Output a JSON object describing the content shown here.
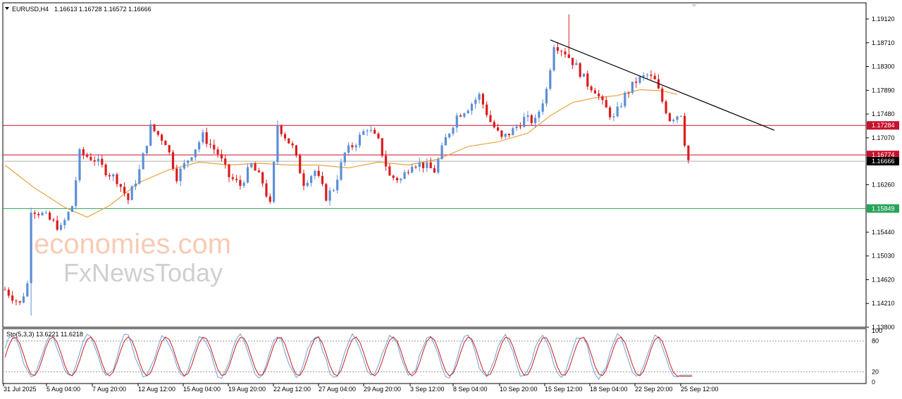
{
  "header": {
    "symbol": "EURUSD,H4",
    "ohlc": "1.16613 1.16728 1.16572 1.16666"
  },
  "indicator": {
    "label": "Sto(5,3,3) 13.6221 11.6218",
    "levels": [
      "100",
      "80",
      "20",
      "0"
    ]
  },
  "watermark": {
    "line1": "economies.com",
    "line2": "FxNewsToday"
  },
  "colors": {
    "bull": "#5b8fd6",
    "bear": "#dd1c1c",
    "ma": "#e8a33d",
    "trendline": "#000000",
    "resistance": "#c8112e",
    "support": "#27a35b",
    "current": "#000000",
    "sto_main": "#6ea0d8",
    "sto_signal": "#c81e1e"
  },
  "chart_data": {
    "type": "candlestick",
    "symbol": "EURUSD",
    "timeframe": "H4",
    "ylim": [
      1.138,
      1.194
    ],
    "y_ticks": [
      "1.19120",
      "1.18710",
      "1.18300",
      "1.17890",
      "1.17480",
      "1.17070",
      "1.16260",
      "1.15440",
      "1.15030",
      "1.14620",
      "1.14210",
      "1.13800"
    ],
    "x_ticks": [
      "31 Jul 2025",
      "5 Aug 04:00",
      "7 Aug 20:00",
      "12 Aug 12:00",
      "15 Aug 04:00",
      "19 Aug 20:00",
      "22 Aug 12:00",
      "27 Aug 04:00",
      "29 Aug 20:00",
      "3 Sep 12:00",
      "8 Sep 04:00",
      "10 Sep 20:00",
      "15 Sep 12:00",
      "18 Sep 04:00",
      "22 Sep 20:00",
      "25 Sep 12:00"
    ],
    "horizontal_lines": [
      {
        "label": "1.17284",
        "value": 1.17284,
        "kind": "resistance"
      },
      {
        "label": "1.16774",
        "value": 1.16774,
        "kind": "resistance"
      },
      {
        "label": "1.16666",
        "value": 1.16666,
        "kind": "current"
      },
      {
        "label": "1.15849",
        "value": 1.15849,
        "kind": "support"
      }
    ],
    "trendline": {
      "from": {
        "bar": 146,
        "price": 1.1876
      },
      "to": {
        "bar": 206,
        "price": 1.172
      }
    },
    "price_path": [
      [
        0,
        1.1445
      ],
      [
        4,
        1.142
      ],
      [
        6,
        1.1455
      ],
      [
        7,
        1.1585
      ],
      [
        10,
        1.1575
      ],
      [
        13,
        1.156
      ],
      [
        15,
        1.155
      ],
      [
        18,
        1.159
      ],
      [
        20,
        1.168
      ],
      [
        24,
        1.167
      ],
      [
        27,
        1.165
      ],
      [
        30,
        1.1635
      ],
      [
        33,
        1.16
      ],
      [
        36,
        1.165
      ],
      [
        39,
        1.1725
      ],
      [
        43,
        1.17
      ],
      [
        46,
        1.164
      ],
      [
        50,
        1.168
      ],
      [
        53,
        1.171
      ],
      [
        57,
        1.168
      ],
      [
        60,
        1.164
      ],
      [
        63,
        1.1625
      ],
      [
        66,
        1.166
      ],
      [
        69,
        1.163
      ],
      [
        71,
        1.159
      ],
      [
        73,
        1.173
      ],
      [
        77,
        1.169
      ],
      [
        80,
        1.163
      ],
      [
        83,
        1.165
      ],
      [
        86,
        1.1605
      ],
      [
        88,
        1.162
      ],
      [
        91,
        1.168
      ],
      [
        94,
        1.17
      ],
      [
        97,
        1.1725
      ],
      [
        100,
        1.17
      ],
      [
        103,
        1.164
      ],
      [
        106,
        1.1635
      ],
      [
        109,
        1.1665
      ],
      [
        112,
        1.166
      ],
      [
        115,
        1.165
      ],
      [
        118,
        1.1705
      ],
      [
        121,
        1.1745
      ],
      [
        124,
        1.176
      ],
      [
        127,
        1.178
      ],
      [
        130,
        1.1735
      ],
      [
        133,
        1.1705
      ],
      [
        136,
        1.172
      ],
      [
        139,
        1.174
      ],
      [
        142,
        1.1735
      ],
      [
        145,
        1.179
      ],
      [
        147,
        1.187
      ],
      [
        150,
        1.1855
      ],
      [
        153,
        1.183
      ],
      [
        156,
        1.18
      ],
      [
        158,
        1.179
      ],
      [
        160,
        1.1765
      ],
      [
        163,
        1.174
      ],
      [
        166,
        1.178
      ],
      [
        169,
        1.1805
      ],
      [
        172,
        1.1815
      ],
      [
        174,
        1.1805
      ],
      [
        176,
        1.177
      ],
      [
        178,
        1.174
      ],
      [
        181,
        1.175
      ],
      [
        182,
        1.17
      ],
      [
        183,
        1.1668
      ]
    ],
    "ma_path": [
      [
        0,
        1.166
      ],
      [
        8,
        1.162
      ],
      [
        16,
        1.1587
      ],
      [
        22,
        1.157
      ],
      [
        28,
        1.159
      ],
      [
        36,
        1.163
      ],
      [
        44,
        1.1652
      ],
      [
        52,
        1.1665
      ],
      [
        60,
        1.166
      ],
      [
        68,
        1.1663
      ],
      [
        76,
        1.166
      ],
      [
        84,
        1.166
      ],
      [
        92,
        1.1655
      ],
      [
        100,
        1.1665
      ],
      [
        108,
        1.166
      ],
      [
        116,
        1.167
      ],
      [
        124,
        1.1692
      ],
      [
        132,
        1.17
      ],
      [
        140,
        1.1715
      ],
      [
        146,
        1.1745
      ],
      [
        152,
        1.1768
      ],
      [
        158,
        1.1776
      ],
      [
        164,
        1.178
      ],
      [
        170,
        1.179
      ],
      [
        176,
        1.1788
      ],
      [
        180,
        1.1782
      ]
    ],
    "stochastic": {
      "params": "5,3,3",
      "main": 13.6221,
      "signal": 11.6218,
      "overbought": 80,
      "oversold": 20
    }
  }
}
